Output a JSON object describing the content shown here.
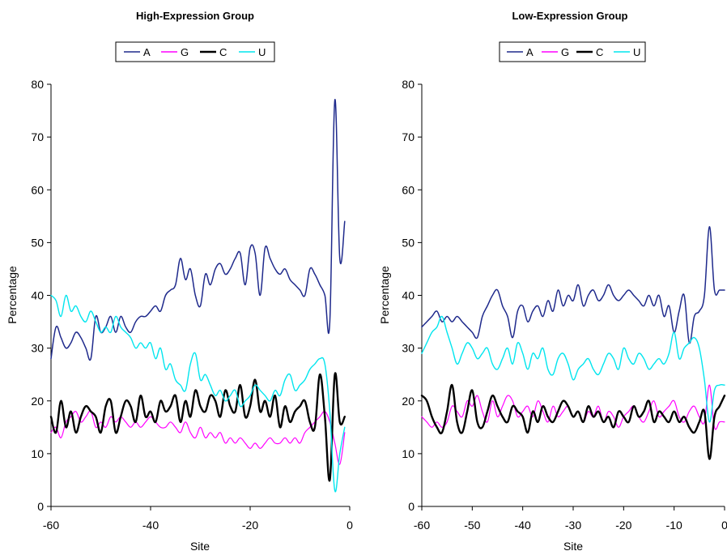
{
  "chart_data": [
    {
      "type": "line",
      "title": "High-Expression Group",
      "xlabel": "Site",
      "ylabel": "Percentage",
      "xlim": [
        -60,
        0
      ],
      "ylim": [
        0,
        80
      ],
      "xticks": [
        -60,
        -40,
        -20,
        0
      ],
      "yticks": [
        0,
        10,
        20,
        30,
        40,
        50,
        60,
        70,
        80
      ],
      "grid": false,
      "legend": "top",
      "x": [
        -60,
        -59,
        -58,
        -57,
        -56,
        -55,
        -54,
        -53,
        -52,
        -51,
        -50,
        -49,
        -48,
        -47,
        -46,
        -45,
        -44,
        -43,
        -42,
        -41,
        -40,
        -39,
        -38,
        -37,
        -36,
        -35,
        -34,
        -33,
        -32,
        -31,
        -30,
        -29,
        -28,
        -27,
        -26,
        -25,
        -24,
        -23,
        -22,
        -21,
        -20,
        -19,
        -18,
        -17,
        -16,
        -15,
        -14,
        -13,
        -12,
        -11,
        -10,
        -9,
        -8,
        -7,
        -6,
        -5,
        -4,
        -3,
        -2,
        -1
      ],
      "series": [
        {
          "name": "A",
          "color": "#1f2a8c",
          "width": 1.5,
          "values": [
            28,
            34,
            32,
            30,
            31,
            33,
            32,
            30,
            28,
            36,
            33,
            34,
            36,
            33,
            36,
            34,
            33,
            35,
            36,
            36,
            37,
            38,
            37,
            40,
            41,
            42,
            47,
            43,
            45,
            40,
            38,
            44,
            42,
            45,
            46,
            44,
            45,
            47,
            48,
            42,
            49,
            48,
            40,
            49,
            47,
            45,
            44,
            45,
            43,
            42,
            41,
            40,
            45,
            44,
            42,
            40,
            35,
            77,
            47,
            54
          ]
        },
        {
          "name": "G",
          "color": "#ff00ff",
          "width": 1.2,
          "values": [
            14,
            15,
            13,
            16,
            17,
            18,
            16,
            17,
            18,
            15,
            16,
            15,
            17,
            16,
            17,
            16,
            15,
            16,
            15,
            16,
            17,
            16,
            15,
            15,
            16,
            15,
            14,
            16,
            14,
            13,
            15,
            13,
            14,
            13,
            14,
            12,
            13,
            12,
            13,
            12,
            11,
            12,
            11,
            12,
            13,
            12,
            12,
            13,
            12,
            13,
            12,
            14,
            15,
            16,
            17,
            18,
            16,
            12,
            8,
            14
          ]
        },
        {
          "name": "C",
          "color": "#000000",
          "width": 2.4,
          "values": [
            17,
            14,
            20,
            15,
            18,
            14,
            17,
            19,
            18,
            17,
            14,
            19,
            20,
            14,
            17,
            20,
            19,
            16,
            21,
            17,
            18,
            16,
            20,
            18,
            19,
            21,
            16,
            20,
            17,
            22,
            19,
            18,
            21,
            20,
            17,
            22,
            19,
            18,
            23,
            17,
            19,
            24,
            18,
            20,
            17,
            21,
            15,
            19,
            16,
            18,
            19,
            20,
            16,
            15,
            25,
            17,
            5,
            25,
            16,
            17
          ]
        },
        {
          "name": "U",
          "color": "#00e5ee",
          "width": 1.4,
          "values": [
            40,
            39,
            36,
            40,
            37,
            38,
            36,
            35,
            37,
            35,
            33,
            34,
            33,
            36,
            34,
            33,
            32,
            30,
            31,
            30,
            31,
            28,
            30,
            26,
            27,
            24,
            23,
            22,
            27,
            29,
            24,
            25,
            23,
            21,
            22,
            20,
            21,
            22,
            19,
            20,
            21,
            23,
            22,
            21,
            20,
            22,
            21,
            24,
            25,
            22,
            23,
            24,
            26,
            27,
            28,
            27,
            18,
            3,
            10,
            15
          ]
        }
      ]
    },
    {
      "type": "line",
      "title": "Low-Expression Group",
      "xlabel": "Site",
      "ylabel": "Percentage",
      "xlim": [
        -60,
        0
      ],
      "ylim": [
        0,
        80
      ],
      "xticks": [
        -60,
        -50,
        -40,
        -30,
        -20,
        -10,
        0
      ],
      "yticks": [
        0,
        10,
        20,
        30,
        40,
        50,
        60,
        70,
        80
      ],
      "grid": false,
      "legend": "top",
      "x": [
        -60,
        -59,
        -58,
        -57,
        -56,
        -55,
        -54,
        -53,
        -52,
        -51,
        -50,
        -49,
        -48,
        -47,
        -46,
        -45,
        -44,
        -43,
        -42,
        -41,
        -40,
        -39,
        -38,
        -37,
        -36,
        -35,
        -34,
        -33,
        -32,
        -31,
        -30,
        -29,
        -28,
        -27,
        -26,
        -25,
        -24,
        -23,
        -22,
        -21,
        -20,
        -19,
        -18,
        -17,
        -16,
        -15,
        -14,
        -13,
        -12,
        -11,
        -10,
        -9,
        -8,
        -7,
        -6,
        -5,
        -4,
        -3,
        -2,
        -1,
        0
      ],
      "series": [
        {
          "name": "A",
          "color": "#1f2a8c",
          "width": 1.5,
          "values": [
            34,
            35,
            36,
            37,
            35,
            36,
            35,
            36,
            35,
            34,
            33,
            32,
            36,
            38,
            40,
            41,
            38,
            36,
            32,
            37,
            38,
            35,
            37,
            38,
            36,
            39,
            37,
            41,
            38,
            40,
            39,
            42,
            38,
            40,
            41,
            39,
            40,
            42,
            40,
            39,
            40,
            41,
            40,
            39,
            38,
            40,
            38,
            40,
            36,
            38,
            33,
            37,
            40,
            31,
            36,
            37,
            40,
            53,
            41,
            41,
            41
          ]
        },
        {
          "name": "G",
          "color": "#ff00ff",
          "width": 1.2,
          "values": [
            17,
            16,
            15,
            16,
            15,
            16,
            19,
            18,
            17,
            20,
            19,
            21,
            18,
            16,
            20,
            17,
            19,
            21,
            20,
            17,
            18,
            19,
            17,
            20,
            18,
            16,
            19,
            17,
            18,
            19,
            17,
            18,
            16,
            18,
            17,
            19,
            16,
            18,
            17,
            15,
            17,
            18,
            19,
            17,
            16,
            18,
            20,
            17,
            18,
            19,
            20,
            17,
            16,
            18,
            19,
            17,
            16,
            23,
            15,
            16,
            16
          ]
        },
        {
          "name": "C",
          "color": "#000000",
          "width": 2.4,
          "values": [
            21,
            20,
            17,
            15,
            14,
            18,
            23,
            16,
            14,
            18,
            22,
            16,
            15,
            18,
            21,
            19,
            17,
            16,
            19,
            18,
            17,
            14,
            18,
            16,
            19,
            17,
            16,
            18,
            20,
            19,
            17,
            18,
            16,
            19,
            17,
            18,
            16,
            17,
            15,
            18,
            17,
            16,
            19,
            17,
            18,
            20,
            16,
            18,
            17,
            16,
            18,
            16,
            17,
            15,
            14,
            16,
            18,
            9,
            17,
            19,
            21
          ]
        },
        {
          "name": "U",
          "color": "#00e5ee",
          "width": 1.4,
          "values": [
            29,
            31,
            33,
            34,
            36,
            33,
            30,
            27,
            29,
            31,
            30,
            28,
            29,
            30,
            27,
            26,
            28,
            30,
            27,
            31,
            29,
            26,
            29,
            28,
            30,
            26,
            25,
            28,
            29,
            27,
            24,
            26,
            27,
            28,
            26,
            25,
            27,
            29,
            28,
            26,
            30,
            28,
            27,
            29,
            28,
            26,
            27,
            28,
            27,
            29,
            33,
            28,
            30,
            31,
            32,
            30,
            24,
            16,
            22,
            23,
            23
          ]
        }
      ]
    }
  ]
}
